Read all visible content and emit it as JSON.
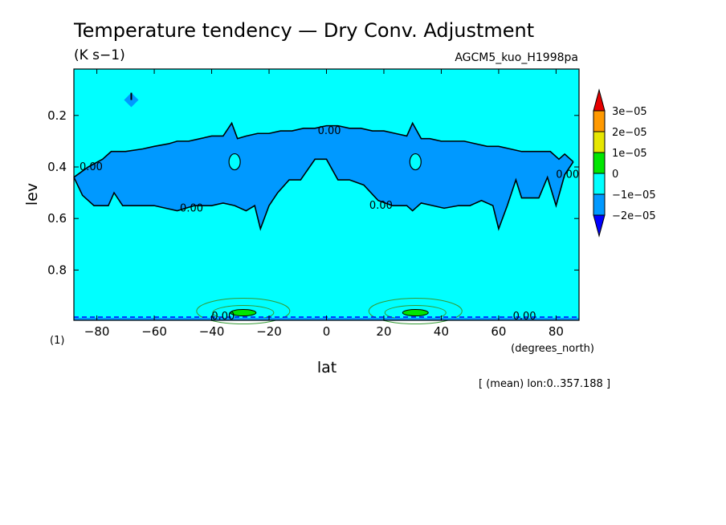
{
  "chart_data": {
    "type": "contour",
    "title": "Temperature tendency — Dry Conv. Adjustment",
    "units": "(K s−1)",
    "source": "AGCM5_kuo_H1998pa",
    "xlabel": "lat",
    "xunits": "(degrees_north)",
    "ylabel": "lev",
    "yunits": "(1)",
    "footnote": "[ (mean) lon:0..357.188 ]",
    "xlim": [
      -88,
      88
    ],
    "ylim": [
      0.02,
      0.995
    ],
    "y_inverted": true,
    "x_ticks": [
      -80,
      -60,
      -40,
      -20,
      0,
      20,
      40,
      60,
      80
    ],
    "y_ticks": [
      0.2,
      0.4,
      0.6,
      0.8
    ],
    "contour_label": "0.00",
    "background_level": "0",
    "colorbar": {
      "labels": [
        "3e−05",
        "2e−05",
        "1e−05",
        "0",
        "−1e−05",
        "−2e−05"
      ],
      "colors": [
        "#e60000",
        "#ff9900",
        "#e6e600",
        "#00e600",
        "#00ffff",
        "#0099ff",
        "#0000ff"
      ]
    },
    "negative_band": {
      "level": "-1e-05",
      "top": [
        [
          -88,
          0.44
        ],
        [
          -83,
          0.4
        ],
        [
          -78,
          0.37
        ],
        [
          -75,
          0.34
        ],
        [
          -70,
          0.34
        ],
        [
          -64,
          0.33
        ],
        [
          -60,
          0.32
        ],
        [
          -55,
          0.31
        ],
        [
          -52,
          0.3
        ],
        [
          -48,
          0.3
        ],
        [
          -44,
          0.29
        ],
        [
          -40,
          0.28
        ],
        [
          -36,
          0.28
        ],
        [
          -33,
          0.23
        ],
        [
          -31,
          0.29
        ],
        [
          -28,
          0.28
        ],
        [
          -24,
          0.27
        ],
        [
          -20,
          0.27
        ],
        [
          -16,
          0.26
        ],
        [
          -12,
          0.26
        ],
        [
          -8,
          0.25
        ],
        [
          -4,
          0.25
        ],
        [
          0,
          0.24
        ],
        [
          4,
          0.24
        ],
        [
          8,
          0.25
        ],
        [
          12,
          0.25
        ],
        [
          16,
          0.26
        ],
        [
          20,
          0.26
        ],
        [
          24,
          0.27
        ],
        [
          28,
          0.28
        ],
        [
          30,
          0.23
        ],
        [
          33,
          0.29
        ],
        [
          36,
          0.29
        ],
        [
          40,
          0.3
        ],
        [
          44,
          0.3
        ],
        [
          48,
          0.3
        ],
        [
          52,
          0.31
        ],
        [
          56,
          0.32
        ],
        [
          60,
          0.32
        ],
        [
          64,
          0.33
        ],
        [
          68,
          0.34
        ],
        [
          74,
          0.34
        ],
        [
          78,
          0.34
        ],
        [
          81,
          0.37
        ],
        [
          83,
          0.35
        ],
        [
          86,
          0.38
        ]
      ],
      "bottom": [
        [
          -88,
          0.44
        ],
        [
          -85,
          0.51
        ],
        [
          -81,
          0.55
        ],
        [
          -76,
          0.55
        ],
        [
          -74,
          0.5
        ],
        [
          -71,
          0.55
        ],
        [
          -66,
          0.55
        ],
        [
          -60,
          0.55
        ],
        [
          -56,
          0.56
        ],
        [
          -52,
          0.57
        ],
        [
          -46,
          0.55
        ],
        [
          -40,
          0.55
        ],
        [
          -36,
          0.54
        ],
        [
          -32,
          0.55
        ],
        [
          -28,
          0.57
        ],
        [
          -25,
          0.55
        ],
        [
          -23,
          0.64
        ],
        [
          -20,
          0.55
        ],
        [
          -17,
          0.5
        ],
        [
          -13,
          0.45
        ],
        [
          -9,
          0.45
        ],
        [
          -4,
          0.37
        ],
        [
          0,
          0.37
        ],
        [
          4,
          0.45
        ],
        [
          8,
          0.45
        ],
        [
          13,
          0.47
        ],
        [
          18,
          0.53
        ],
        [
          23,
          0.55
        ],
        [
          28,
          0.55
        ],
        [
          30,
          0.57
        ],
        [
          33,
          0.54
        ],
        [
          37,
          0.55
        ],
        [
          41,
          0.56
        ],
        [
          46,
          0.55
        ],
        [
          50,
          0.55
        ],
        [
          54,
          0.53
        ],
        [
          58,
          0.55
        ],
        [
          60,
          0.64
        ],
        [
          63,
          0.55
        ],
        [
          66,
          0.45
        ],
        [
          68,
          0.52
        ],
        [
          71,
          0.52
        ],
        [
          74,
          0.52
        ],
        [
          77,
          0.44
        ],
        [
          80,
          0.55
        ],
        [
          83,
          0.43
        ],
        [
          86,
          0.38
        ]
      ]
    },
    "small_features": [
      {
        "lat": -68,
        "lev": 0.14,
        "level": "-1e-05",
        "kind": "diamond"
      },
      {
        "lat": -32,
        "lev": 0.38,
        "level": "0",
        "kind": "island"
      },
      {
        "lat": 31,
        "lev": 0.38,
        "level": "0",
        "kind": "island"
      },
      {
        "lat": -29,
        "lev": 0.95,
        "level": "1e-05",
        "kind": "surface-max"
      },
      {
        "lat": 31,
        "lev": 0.95,
        "level": "1e-05",
        "kind": "surface-max"
      }
    ]
  }
}
